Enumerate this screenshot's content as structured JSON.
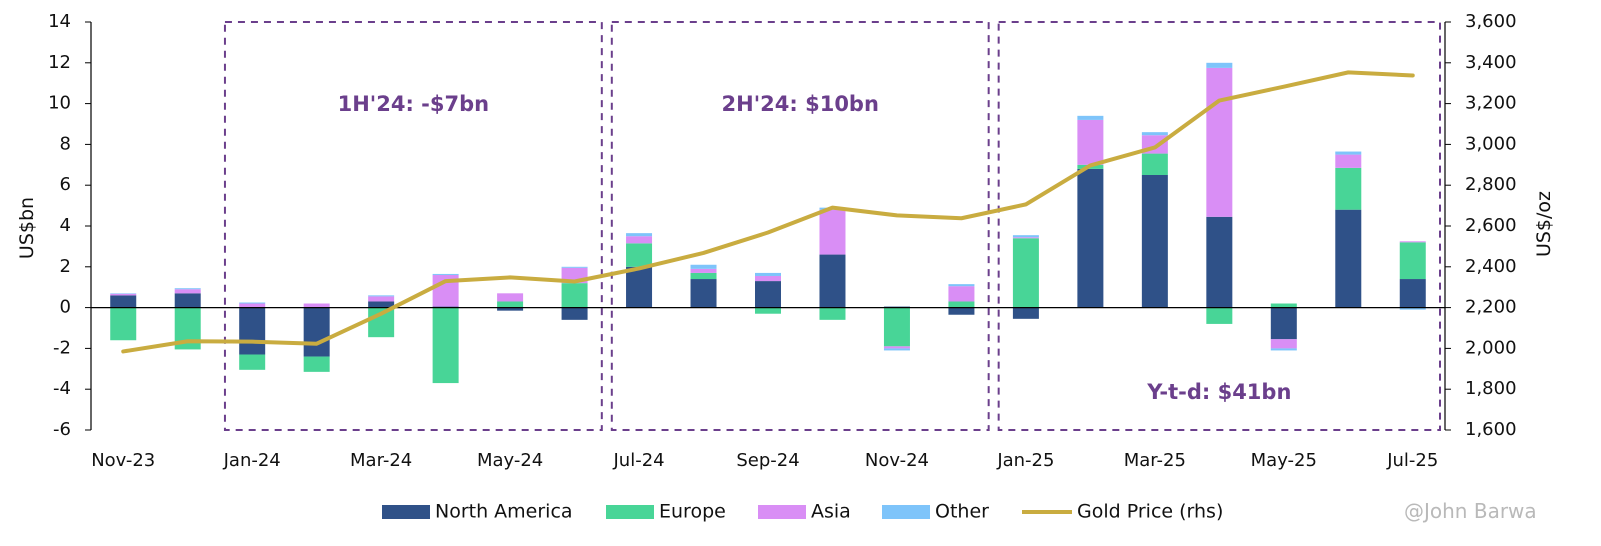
{
  "chart_data": {
    "type": "bar",
    "stacked": true,
    "categories": [
      "Nov-23",
      "Dec-23",
      "Jan-24",
      "Feb-24",
      "Mar-24",
      "Apr-24",
      "May-24",
      "Jun-24",
      "Jul-24",
      "Aug-24",
      "Sep-24",
      "Oct-24",
      "Nov-24",
      "Dec-24",
      "Jan-25",
      "Feb-25",
      "Mar-25",
      "Apr-25",
      "May-25",
      "Jun-25",
      "Jul-25"
    ],
    "x_tick_labels": [
      "Nov-23",
      "Jan-24",
      "Mar-24",
      "May-24",
      "Jul-24",
      "Sep-24",
      "Nov-24",
      "Jan-25",
      "Mar-25",
      "May-25",
      "Jul-25"
    ],
    "series": [
      {
        "name": "North America",
        "color": "#2f5188",
        "values": [
          0.6,
          0.7,
          -2.3,
          -2.4,
          0.3,
          0.05,
          -0.15,
          -0.6,
          2.0,
          1.4,
          1.3,
          2.6,
          0.05,
          -0.35,
          -0.55,
          6.8,
          6.5,
          4.45,
          -1.55,
          4.8,
          1.4
        ]
      },
      {
        "name": "Europe",
        "color": "#48d597",
        "values": [
          -1.6,
          -2.05,
          -0.75,
          -0.75,
          -1.45,
          -3.7,
          0.3,
          1.2,
          1.15,
          0.3,
          -0.3,
          -0.6,
          -1.9,
          0.3,
          3.4,
          0.2,
          1.05,
          -0.8,
          0.2,
          2.05,
          1.8
        ]
      },
      {
        "name": "Asia",
        "color": "#d98ef5",
        "values": [
          0.08,
          0.2,
          0.2,
          0.2,
          0.25,
          1.55,
          0.4,
          0.75,
          0.35,
          0.2,
          0.25,
          2.2,
          -0.1,
          0.75,
          0.05,
          2.2,
          0.9,
          7.3,
          -0.45,
          0.65,
          0.05
        ]
      },
      {
        "name": "Other",
        "color": "#7ec4fa",
        "values": [
          0.02,
          0.05,
          0.05,
          0.0,
          0.05,
          0.05,
          0.0,
          0.05,
          0.15,
          0.2,
          0.15,
          0.1,
          -0.1,
          0.1,
          0.1,
          0.2,
          0.15,
          0.25,
          -0.1,
          0.15,
          -0.1
        ]
      }
    ],
    "line_series": {
      "name": "Gold Price (rhs)",
      "color": "#c9ac40",
      "axis": "right",
      "values": [
        1985,
        2035,
        2033,
        2023,
        2170,
        2330,
        2348,
        2328,
        2392,
        2468,
        2568,
        2690,
        2652,
        2638,
        2706,
        2897,
        2985,
        3215,
        3283,
        3353,
        3338
      ]
    },
    "ylabel": "US$bn",
    "ylim": [
      -6,
      14
    ],
    "yticks": [
      -6,
      -4,
      -2,
      0,
      2,
      4,
      6,
      8,
      10,
      12,
      14
    ],
    "y2label": "US$/oz",
    "y2lim": [
      1600,
      3600
    ],
    "y2ticks": [
      "1,600",
      "1,800",
      "2,000",
      "2,200",
      "2,400",
      "2,600",
      "2,800",
      "3,000",
      "3,200",
      "3,400",
      "3,600"
    ],
    "annotations": [
      {
        "text": "1H'24: -$7bn",
        "from": "Jan-24",
        "to": "Jun-24"
      },
      {
        "text": "2H'24: $10bn",
        "from": "Jul-24",
        "to": "Dec-24"
      },
      {
        "text": "Y-t-d: $41bn",
        "from": "Jan-25",
        "to": "Jul-25"
      }
    ],
    "legend": {
      "position": "bottom"
    },
    "grid": false
  },
  "watermark": "@John Barwa"
}
